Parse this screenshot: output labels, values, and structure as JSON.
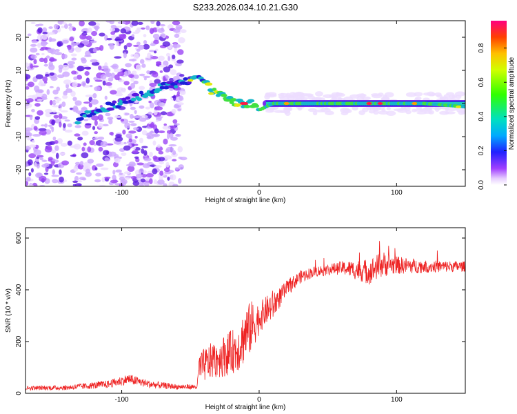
{
  "title": "S233.2026.034.10.21.G30",
  "chart_data": [
    {
      "type": "heatmap",
      "xlabel": "Height of straight line (km)",
      "ylabel": "Frequency (Hz)",
      "xlim": [
        -170,
        150
      ],
      "ylim": [
        -25,
        25
      ],
      "xticks": [
        -100,
        0,
        100
      ],
      "yticks": [
        -20,
        -10,
        0,
        10,
        20
      ],
      "colorbar": {
        "label": "Normalized spectral amplitude",
        "range": [
          0,
          0.96
        ],
        "ticks": [
          0.0,
          0.2,
          0.4,
          0.6,
          0.8
        ]
      },
      "ridge_frequency_hz": {
        "x": [
          -130,
          -120,
          -110,
          -100,
          -90,
          -80,
          -70,
          -60,
          -50,
          -45,
          -40,
          -35,
          -30,
          -25,
          -20,
          -15,
          -10,
          -5,
          0,
          5,
          10,
          20,
          40,
          60,
          80,
          100,
          120,
          150
        ],
        "y": [
          -5,
          -2,
          -1,
          0,
          2,
          3,
          5,
          6,
          7,
          8,
          7,
          4,
          3,
          2,
          1,
          0,
          0,
          0,
          -2,
          -1,
          0,
          0,
          0,
          0,
          0,
          0,
          0,
          -1
        ]
      }
    },
    {
      "type": "line",
      "xlabel": "Height of straight line (km)",
      "ylabel": "SNR (10 * v/v)",
      "xlim": [
        -170,
        150
      ],
      "ylim": [
        0,
        640
      ],
      "xticks": [
        -100,
        0,
        100
      ],
      "yticks": [
        0,
        200,
        400,
        600
      ],
      "series": [
        {
          "name": "SNR",
          "color": "#ee2222",
          "x": [
            -170,
            -140,
            -110,
            -95,
            -80,
            -60,
            -45,
            -44,
            -35,
            -25,
            -15,
            -10,
            -5,
            0,
            5,
            10,
            15,
            20,
            30,
            40,
            60,
            80,
            90,
            100,
            120,
            150
          ],
          "mean": [
            20,
            22,
            35,
            55,
            35,
            25,
            25,
            95,
            125,
            145,
            175,
            230,
            260,
            290,
            320,
            340,
            370,
            405,
            450,
            470,
            485,
            470,
            500,
            495,
            490,
            490
          ],
          "noise": [
            8,
            10,
            15,
            20,
            15,
            10,
            10,
            60,
            70,
            80,
            90,
            110,
            100,
            60,
            55,
            60,
            40,
            30,
            25,
            20,
            25,
            50,
            50,
            35,
            25,
            20
          ]
        }
      ]
    }
  ]
}
